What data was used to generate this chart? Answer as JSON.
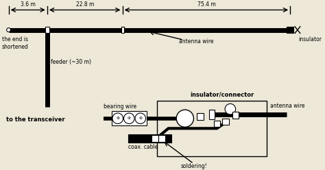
{
  "bg_color": "#ede8d8",
  "line_color": "#000000",
  "thick_lw": 5,
  "thin_lw": 1.0,
  "label_3_6": "3.6 m",
  "label_22_8": "22.8 m",
  "label_75_4": "75.4 m",
  "label_antenna_wire": "antenna wire",
  "label_insulator": "insulator",
  "label_end_shortened": "the end is\nshortened",
  "label_feeder": "feeder (~30 m)",
  "label_transceiver": "to the transceiver",
  "label_ins_connector": "insulator/connector",
  "label_bearing_wire": "bearing wire",
  "label_coax": "coax. cable",
  "label_antenna_wire2": "antenna wire",
  "label_soldering": "soldering!"
}
